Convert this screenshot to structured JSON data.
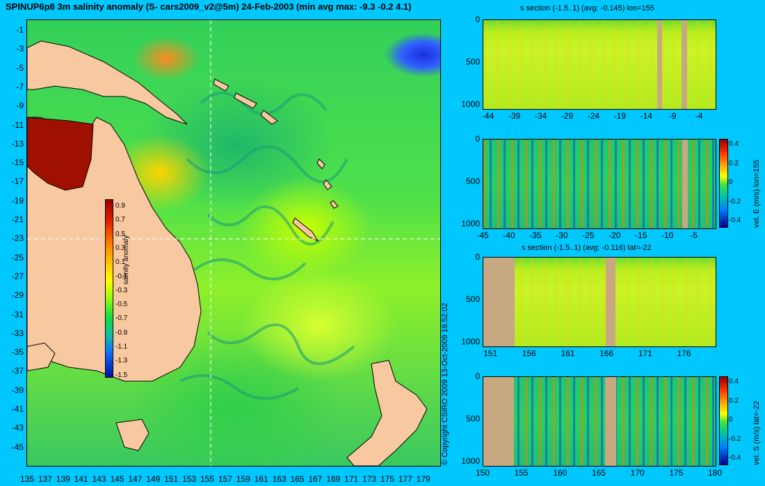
{
  "title": "SPINUP6p8 3m salinity anomaly (S- cars2009_v2@5m) 24-Feb-2003 (min avg max: -9.3 -0.2 4.1)",
  "map": {
    "y_ticks": [
      "-1",
      "-3",
      "-5",
      "-7",
      "-9",
      "-11",
      "-13",
      "-15",
      "-17",
      "-19",
      "-21",
      "-23",
      "-25",
      "-27",
      "-29",
      "-31",
      "-33",
      "-35",
      "-37",
      "-39",
      "-41",
      "-43",
      "-45"
    ],
    "x_ticks": [
      "135",
      "137",
      "139",
      "141",
      "143",
      "145",
      "147",
      "149",
      "151",
      "153",
      "155",
      "157",
      "159",
      "161",
      "163",
      "165",
      "167",
      "169",
      "171",
      "173",
      "175",
      "177",
      "179"
    ],
    "lon_range": [
      134,
      180
    ],
    "lat_range": [
      -0.3,
      -45
    ],
    "section_lon": 155,
    "section_lat": -22,
    "colors": {
      "land": "#f8c8a0",
      "cross_line": "#ffffff"
    },
    "colorbar": {
      "label": "salinity anomaly",
      "ticks": [
        "0.9",
        "0.7",
        "0.5",
        "0.3",
        "0.1",
        "-0.1",
        "-0.3",
        "-0.5",
        "-0.7",
        "-0.9",
        "-1.1",
        "-1.3",
        "-1.5"
      ],
      "range": [
        -1.5,
        1.0
      ]
    }
  },
  "copyright": "© Copyright CSIRO 2009  13-Oct-2009 16:52:02",
  "sections": [
    {
      "title": "s section (-1.5..1) (avg: -0.145) lon=155",
      "y_ticks": [
        "0",
        "500",
        "1000"
      ],
      "x_ticks": [
        "-44",
        "-39",
        "-34",
        "-29",
        "-24",
        "-19",
        "-14",
        "-9",
        "-4"
      ],
      "x_range": [
        -45,
        -1
      ],
      "y_range": [
        0,
        1050
      ]
    },
    {
      "title": "",
      "y_ticks": [
        "0",
        "500",
        "1000"
      ],
      "x_ticks": [
        "-45",
        "-40",
        "-35",
        "-30",
        "-25",
        "-20",
        "-15",
        "-10",
        "-5"
      ],
      "x_range": [
        -45,
        -1
      ],
      "y_range": [
        0,
        1050
      ],
      "colorbar": {
        "label": "vel. E (m/s) lon=155",
        "ticks": [
          "0.4",
          "0.2",
          "0",
          "-0.2",
          "-0.4"
        ]
      }
    },
    {
      "title": "s section (-1.5..1) (avg: -0.116) lat=-22",
      "y_ticks": [
        "0",
        "500",
        "1000"
      ],
      "x_ticks": [
        "151",
        "156",
        "161",
        "166",
        "171",
        "176"
      ],
      "x_range": [
        150,
        180
      ],
      "y_range": [
        0,
        1050
      ]
    },
    {
      "title": "",
      "y_ticks": [
        "0",
        "500",
        "1000"
      ],
      "x_ticks": [
        "150",
        "155",
        "160",
        "165",
        "170",
        "175",
        "180"
      ],
      "x_range": [
        150,
        180
      ],
      "y_range": [
        0,
        1050
      ],
      "colorbar": {
        "label": "vel. S (m/s) lat=-22",
        "ticks": [
          "0.4",
          "0.2",
          "0",
          "-0.2",
          "-0.4"
        ]
      }
    }
  ]
}
